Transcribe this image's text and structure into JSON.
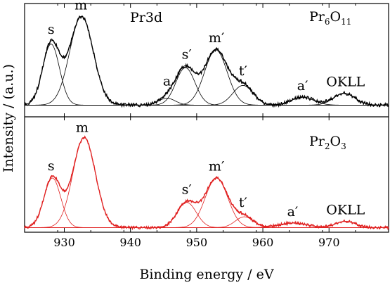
{
  "chart_data": [
    {
      "type": "line",
      "panel": "top",
      "sample_label": "Pr6O11",
      "sample_label_parts": [
        "Pr",
        "6",
        "O",
        "11"
      ],
      "region_label": "Pr3d",
      "xlabel": "Binding energy / eV",
      "ylabel": "Intensity / (a.u.)",
      "xlim": [
        924,
        979
      ],
      "x_reversed": false,
      "xticks": [
        930,
        940,
        950,
        960,
        970
      ],
      "y_ticks_shown": false,
      "line_color": "#000000",
      "background": 0.04,
      "peak_labels": [
        {
          "text": "s",
          "x": 928.0
        },
        {
          "text": "m",
          "x": 932.5
        },
        {
          "text": "a",
          "x": 945.5
        },
        {
          "text": "s′",
          "x": 948.5
        },
        {
          "text": "m′",
          "x": 953.0
        },
        {
          "text": "t′",
          "x": 957.0
        },
        {
          "text": "a′",
          "x": 966.0
        },
        {
          "text": "OKLL",
          "x": 972.5
        }
      ],
      "components": [
        {
          "label": "s",
          "center": 928.0,
          "height": 0.62,
          "fwhm": 3.0
        },
        {
          "label": "m",
          "center": 932.6,
          "height": 0.9,
          "fwhm": 4.2
        },
        {
          "label": "a",
          "center": 945.5,
          "height": 0.07,
          "fwhm": 3.0
        },
        {
          "label": "s′",
          "center": 948.3,
          "height": 0.38,
          "fwhm": 3.4
        },
        {
          "label": "m′",
          "center": 952.9,
          "height": 0.56,
          "fwhm": 4.0
        },
        {
          "label": "t′",
          "center": 957.0,
          "height": 0.2,
          "fwhm": 3.6
        },
        {
          "label": "a′",
          "center": 966.0,
          "height": 0.08,
          "fwhm": 4.0
        },
        {
          "label": "OKLL",
          "center": 972.3,
          "height": 0.12,
          "fwhm": 3.8
        }
      ]
    },
    {
      "type": "line",
      "panel": "bottom",
      "sample_label": "Pr2O3",
      "sample_label_parts": [
        "Pr",
        "2",
        "O",
        "3"
      ],
      "xlabel": "Binding energy / eV",
      "xlim": [
        924,
        979
      ],
      "x_reversed": false,
      "xticks": [
        930,
        940,
        950,
        960,
        970
      ],
      "y_ticks_shown": false,
      "line_color": "#e02020",
      "background": 0.02,
      "peak_labels": [
        {
          "text": "s",
          "x": 928.0
        },
        {
          "text": "m",
          "x": 932.7
        },
        {
          "text": "s′",
          "x": 948.5
        },
        {
          "text": "m′",
          "x": 953.0
        },
        {
          "text": "t′",
          "x": 957.0
        },
        {
          "text": "a′",
          "x": 964.5
        },
        {
          "text": "OKLL",
          "x": 972.5
        }
      ],
      "components": [
        {
          "label": "s",
          "center": 928.2,
          "height": 0.55,
          "fwhm": 3.0
        },
        {
          "label": "m",
          "center": 933.0,
          "height": 1.0,
          "fwhm": 4.0
        },
        {
          "label": "s′",
          "center": 948.5,
          "height": 0.28,
          "fwhm": 3.4
        },
        {
          "label": "m′",
          "center": 953.0,
          "height": 0.55,
          "fwhm": 4.0
        },
        {
          "label": "t′",
          "center": 957.2,
          "height": 0.12,
          "fwhm": 3.2
        },
        {
          "label": "a′",
          "center": 964.5,
          "height": 0.05,
          "fwhm": 5.0
        },
        {
          "label": "OKLL",
          "center": 972.5,
          "height": 0.07,
          "fwhm": 3.5
        }
      ]
    }
  ]
}
